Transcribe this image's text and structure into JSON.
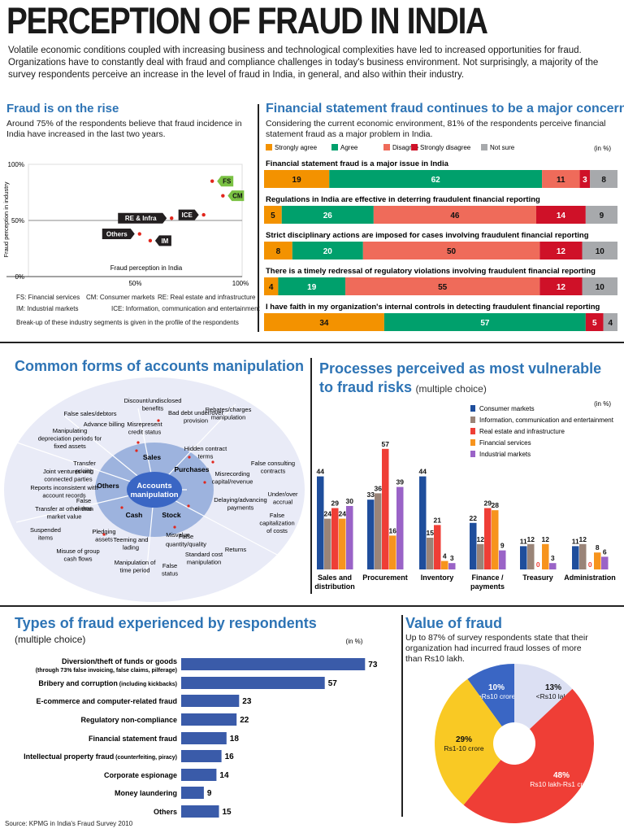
{
  "title": "PERCEPTION OF FRAUD IN INDIA",
  "intro": "Volatile economic conditions coupled with increasing business and technological complexities have led to increased opportunities for fraud. Organizations have to constantly deal with fraud and compliance challenges in today's business environment. Not surprisingly, a majority of the survey respondents perceive an increase in the level of fraud in India, in general, and also within their industry.",
  "source": "Source: KPMG in India's Fraud Survey 2010",
  "rise": {
    "title": "Fraud is on the rise",
    "text": "Around 75% of the respondents believe that fraud incidence in India have increased in the last two years.",
    "legend": [
      {
        "abbr": "FS: Financial services",
        "col": 0
      },
      {
        "abbr": "CM: Consumer markets",
        "col": 1
      },
      {
        "abbr": "RE: Real estate and infrastructure",
        "col": 2
      },
      {
        "abbr": "IM: Industrial markets",
        "col": 0
      },
      {
        "abbr": "ICE: Information, communication and entertainment",
        "col": 1
      }
    ],
    "note": "Break-up of these industry segments is given in the profile of the respondents"
  },
  "statement": {
    "title": "Financial statement fraud continues to be a major concern",
    "text": "Considering the current economic environment, 81% of the respondents perceive financial statement fraud as a major problem in India.",
    "unit": "(in %)"
  },
  "manip": {
    "title": "Common forms of accounts manipulation",
    "center": [
      "Accounts",
      "manipulation"
    ],
    "segments": [
      "Sales",
      "Purchases",
      "Stock",
      "Cash",
      "Others"
    ],
    "items": [
      {
        "t": [
          "Discount/undisclosed",
          "benefits"
        ]
      },
      {
        "t": [
          "False sales/debtors"
        ]
      },
      {
        "t": [
          "Bad debt under/over",
          "provision"
        ]
      },
      {
        "t": [
          "Advance billing"
        ]
      },
      {
        "t": [
          "Misrepresent",
          "credit status"
        ]
      },
      {
        "t": [
          "Manipulating",
          "depreciation periods for",
          "fixed assets"
        ]
      },
      {
        "t": [
          "Rebates/charges",
          "manipulation"
        ]
      },
      {
        "t": [
          "Hidden contract",
          "terms"
        ]
      },
      {
        "t": [
          "Joint ventures with",
          "connected parties"
        ]
      },
      {
        "t": [
          "Transfer",
          "pricing"
        ]
      },
      {
        "t": [
          "False consulting",
          "contracts"
        ]
      },
      {
        "t": [
          "Misrecording",
          "capital/revenue"
        ]
      },
      {
        "t": [
          "Reports inconsistent with",
          "account records"
        ]
      },
      {
        "t": [
          "Under/over",
          "accrual"
        ]
      },
      {
        "t": [
          "False",
          "claims"
        ]
      },
      {
        "t": [
          "Delaying/advancing",
          "payments"
        ]
      },
      {
        "t": [
          "Transfer at other than",
          "market value"
        ]
      },
      {
        "t": [
          "False",
          "capitalization",
          "of costs"
        ]
      },
      {
        "t": [
          "Suspended",
          "items"
        ]
      },
      {
        "t": [
          "Pledging",
          "assets"
        ]
      },
      {
        "t": [
          "Misvalue"
        ]
      },
      {
        "t": [
          "Teeming and",
          "lading"
        ]
      },
      {
        "t": [
          "False",
          "quantity/quality"
        ]
      },
      {
        "t": [
          "Returns"
        ]
      },
      {
        "t": [
          "Misuse of group",
          "cash flows"
        ]
      },
      {
        "t": [
          "Standard cost",
          "manipulation"
        ]
      },
      {
        "t": [
          "Manipulation of",
          "time period"
        ]
      },
      {
        "t": [
          "False",
          "status"
        ]
      }
    ]
  },
  "vuln": {
    "title1": "Processes perceived as most vulnerable",
    "title2": "to fraud risks",
    "subtitle": "(multiple choice)",
    "unit": "(in %)"
  },
  "types": {
    "title": "Types of fraud experienced by respondents",
    "subtitle": "(multiple choice)",
    "unit": "(in %)"
  },
  "value": {
    "title": "Value of fraud",
    "text": "Up to 87% of survey respondents state that their organization had incurred fraud losses of more than Rs10 lakh."
  },
  "chart_data": [
    {
      "type": "scatter",
      "xlabel": "Fraud perception in India",
      "ylabel": "Fraud perception in industry",
      "xticks": [
        "50%",
        "100%"
      ],
      "yticks": [
        "100%",
        "50%",
        "0%"
      ],
      "xlim": [
        0,
        100
      ],
      "ylim": [
        0,
        100
      ],
      "points": [
        {
          "label": "FS",
          "x": 86,
          "y": 85
        },
        {
          "label": "CM",
          "x": 91,
          "y": 72
        },
        {
          "label": "ICE",
          "x": 82,
          "y": 55
        },
        {
          "label": "RE & Infra",
          "x": 67,
          "y": 52
        },
        {
          "label": "Others",
          "x": 52,
          "y": 38
        },
        {
          "label": "IM",
          "x": 57,
          "y": 32
        }
      ],
      "reference_line": {
        "y": 50
      }
    },
    {
      "type": "bar",
      "orientation": "horizontal-stacked",
      "unit": "(in %)",
      "legend": [
        "Strongly agree",
        "Agree",
        "Disagree",
        "Strongly disagree",
        "Not sure"
      ],
      "colors": [
        "#f39200",
        "#00a06c",
        "#ef6b5a",
        "#cf1128",
        "#a7a9ac"
      ],
      "categories": [
        "Financial statement fraud is a major issue in India",
        "Regulations in India are effective in deterring fraudulent financial reporting",
        "Strict disciplinary actions are imposed for cases involving fraudulent financial reporting",
        "There is a timely redressal of regulatory violations involving fraudulent financial reporting",
        "I have faith in my organization's internal controls in detecting fraudulent financial reporting"
      ],
      "rows": [
        [
          19,
          62,
          11,
          3,
          8
        ],
        [
          5,
          26,
          46,
          14,
          9
        ],
        [
          8,
          20,
          50,
          12,
          10
        ],
        [
          4,
          19,
          55,
          12,
          10
        ],
        [
          34,
          57,
          0,
          5,
          4
        ]
      ]
    },
    {
      "type": "bar",
      "unit": "(in %)",
      "categories": [
        "Sales and distribution",
        "Procurement",
        "Inventory",
        "Finance / payments",
        "Treasury",
        "Administration"
      ],
      "series": [
        {
          "name": "Consumer markets",
          "color": "#1f4e9c",
          "values": [
            44,
            33,
            44,
            22,
            11,
            11
          ]
        },
        {
          "name": "Information, communication and entertainment",
          "color": "#9a8478",
          "values": [
            24,
            36,
            15,
            12,
            12,
            12
          ]
        },
        {
          "name": "Real estate and infrastructure",
          "color": "#ef3e36",
          "values": [
            29,
            57,
            21,
            29,
            0,
            0
          ]
        },
        {
          "name": "Financial services",
          "color": "#f7941d",
          "values": [
            24,
            16,
            4,
            28,
            12,
            8
          ]
        },
        {
          "name": "Industrial markets",
          "color": "#9a63c7",
          "values": [
            30,
            39,
            3,
            9,
            3,
            6
          ]
        }
      ]
    },
    {
      "type": "bar",
      "orientation": "horizontal",
      "unit": "(in %)",
      "categories": [
        {
          "label": "Diversion/theft of funds or goods",
          "sub": "(through 73% false invoicing, false claims, pilferage)"
        },
        {
          "label": "Bribery and corruption",
          "inline": "(including kickbacks)"
        },
        {
          "label": "E-commerce and computer-related fraud"
        },
        {
          "label": "Regulatory non-compliance"
        },
        {
          "label": "Financial statement fraud"
        },
        {
          "label": "Intellectual property fraud",
          "inline": "(counterfeiting, piracy)"
        },
        {
          "label": "Corporate espionage"
        },
        {
          "label": "Money laundering"
        },
        {
          "label": "Others"
        }
      ],
      "values": [
        73,
        57,
        23,
        22,
        18,
        16,
        14,
        9,
        15
      ],
      "color": "#3a5ba9"
    },
    {
      "type": "pie",
      "slices": [
        {
          "label": ">Rs10 crore",
          "value": 10,
          "color": "#3a66c4"
        },
        {
          "label": "<Rs10 lakh",
          "value": 13,
          "color": "#dce0f3"
        },
        {
          "label": "Rs10 lakh-Rs1 crore",
          "value": 48,
          "color": "#ef3e36"
        },
        {
          "label": "Rs1-10 crore",
          "value": 29,
          "color": "#f9c924"
        }
      ]
    }
  ]
}
